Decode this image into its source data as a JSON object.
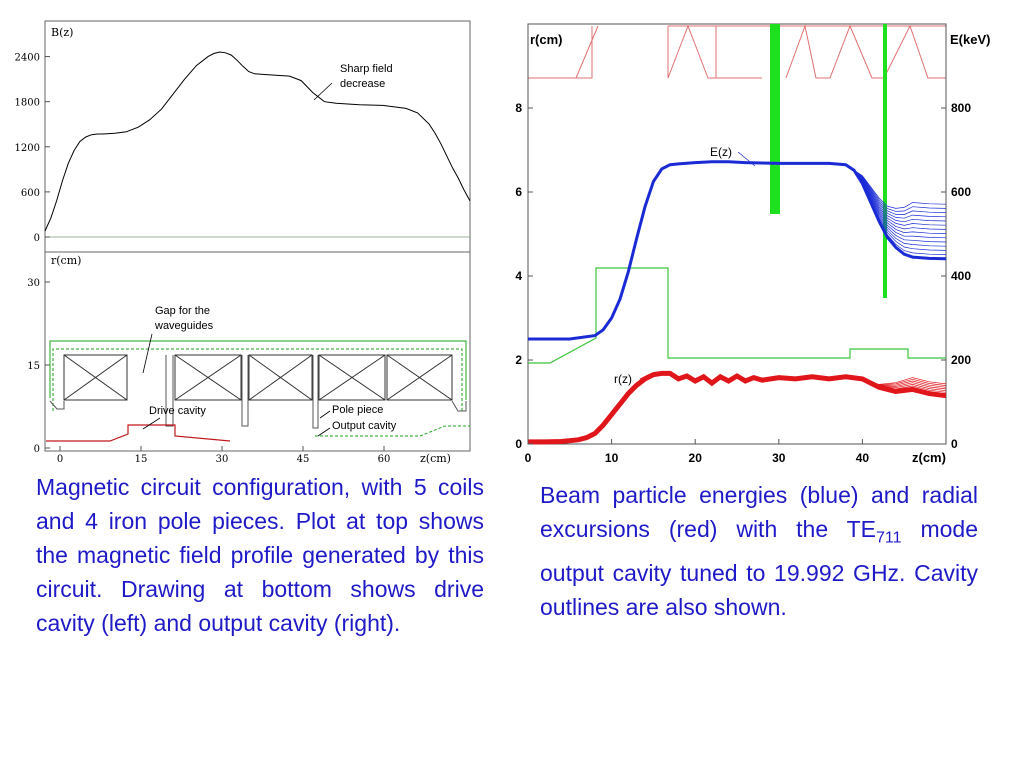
{
  "chart_data": [
    {
      "type": "line",
      "panel": "magnetic-field-profile",
      "ylabel": "B(z)",
      "xlabel": "z(cm)",
      "xticks": [
        0,
        15,
        30,
        45,
        60
      ],
      "yticks": [
        0,
        600,
        1200,
        1800,
        2400
      ],
      "xlim": [
        0,
        73
      ],
      "ylim": [
        0,
        2700
      ],
      "series": [
        {
          "color": "#000000",
          "x": [
            0,
            1,
            2,
            3,
            4,
            5,
            6,
            7,
            8,
            9,
            10,
            12,
            14,
            16,
            18,
            20,
            22,
            24,
            26,
            28,
            29,
            30,
            31,
            32,
            33,
            34,
            35,
            36,
            38,
            40,
            42,
            44,
            46,
            48,
            50,
            54,
            58,
            62,
            64,
            66,
            67,
            68,
            69,
            70,
            71,
            72,
            73
          ],
          "y": [
            80,
            250,
            480,
            750,
            980,
            1150,
            1270,
            1330,
            1360,
            1370,
            1370,
            1380,
            1400,
            1460,
            1560,
            1700,
            1900,
            2100,
            2280,
            2400,
            2440,
            2460,
            2450,
            2420,
            2350,
            2270,
            2200,
            2170,
            2160,
            2150,
            2140,
            2080,
            1920,
            1800,
            1780,
            1760,
            1750,
            1710,
            1650,
            1500,
            1380,
            1240,
            1080,
            920,
            780,
            620,
            480
          ]
        }
      ],
      "annotations": [
        "Sharp field decrease"
      ]
    },
    {
      "type": "line",
      "panel": "beam-energy-and-radius",
      "xlabel": "z(cm)",
      "ylabel_left": "r(cm)",
      "ylabel_right": "E(keV)",
      "xticks": [
        0,
        10,
        20,
        30,
        40
      ],
      "yticks_left": [
        0,
        2,
        4,
        6,
        8
      ],
      "yticks_right": [
        0,
        200,
        400,
        600,
        800
      ],
      "xlim": [
        0,
        50
      ],
      "ylim_left": [
        0,
        10
      ],
      "ylim_right": [
        0,
        1000
      ],
      "series": [
        {
          "name": "E(z)",
          "color": "#1a2bd6",
          "axis": "right",
          "x": [
            0,
            5,
            8,
            9,
            10,
            11,
            12,
            13,
            14,
            15,
            16,
            17,
            18,
            20,
            22,
            24,
            26,
            28,
            30,
            32,
            34,
            36,
            38,
            39,
            40,
            41,
            42,
            43,
            44,
            45,
            46,
            48,
            50
          ],
          "y": [
            250,
            250,
            258,
            272,
            300,
            345,
            410,
            490,
            565,
            625,
            655,
            665,
            667,
            670,
            672,
            672,
            670,
            669,
            668,
            668,
            668,
            668,
            665,
            652,
            620,
            575,
            530,
            492,
            468,
            452,
            445,
            442,
            441
          ]
        },
        {
          "name": "r(z)",
          "color": "#e0161b",
          "axis": "left",
          "x": [
            0,
            2,
            4,
            6,
            7,
            8,
            9,
            10,
            11,
            12,
            13,
            14,
            15,
            16,
            17,
            18,
            19,
            20,
            21,
            22,
            23,
            24,
            25,
            26,
            27,
            28,
            30,
            32,
            34,
            36,
            38,
            40,
            42,
            44,
            46,
            48,
            50
          ],
          "y": [
            0.05,
            0.05,
            0.06,
            0.1,
            0.15,
            0.25,
            0.45,
            0.7,
            0.95,
            1.2,
            1.4,
            1.55,
            1.65,
            1.68,
            1.68,
            1.55,
            1.62,
            1.5,
            1.6,
            1.45,
            1.6,
            1.5,
            1.62,
            1.5,
            1.58,
            1.52,
            1.58,
            1.55,
            1.6,
            1.55,
            1.6,
            1.55,
            1.35,
            1.25,
            1.3,
            1.2,
            1.15
          ]
        }
      ],
      "annotations": [
        "E(z)",
        "r(z)"
      ]
    }
  ],
  "left_figure": {
    "y_axis_label": "B(z)",
    "y_ticks": [
      "2400",
      "1800",
      "1200",
      "600",
      "0"
    ],
    "r_label": "r(cm)",
    "r_ticks": [
      "30",
      "15",
      "0"
    ],
    "x_label": "z(cm)",
    "x_ticks": [
      "0",
      "15",
      "30",
      "45",
      "60"
    ],
    "annotation_sharp_1": "Sharp field",
    "annotation_sharp_2": "decrease",
    "annotation_gap_1": "Gap for the",
    "annotation_gap_2": "waveguides",
    "annotation_drive": "Drive cavity",
    "annotation_pole": "Pole piece",
    "annotation_output": "Output cavity",
    "colors": {
      "curve": "#000000",
      "outline_green": "#1aa51a",
      "cavity_red": "#c0181b",
      "baseline": "#9bb39b"
    }
  },
  "right_figure": {
    "y_left_label": "r(cm)",
    "y_right_label": "E(keV)",
    "x_label": "z(cm)",
    "x_ticks": [
      "0",
      "10",
      "20",
      "30",
      "40"
    ],
    "y_left_ticks": [
      "0",
      "2",
      "4",
      "6",
      "8"
    ],
    "y_right_ticks": [
      "0",
      "200",
      "400",
      "600",
      "800"
    ],
    "label_E": "E(z)",
    "label_r": "r(z)",
    "colors": {
      "energy": "#1a2bd6",
      "radius": "#e0161b",
      "cavity": "#3cc43c",
      "bars": "#1ee01e",
      "pole_outline": "#e07070"
    }
  },
  "captions": {
    "left": "Magnetic circuit configuration, with 5 coils and 4 iron pole pieces.  Plot at top shows the magnetic field profile generated by this circuit. Drawing at bottom shows drive cavity (left) and output cavity (right).",
    "right_part1": "Beam particle energies (blue) and radial excursions (red) with the TE",
    "right_sub": "711",
    "right_part2": " mode output cavity tuned to 19.992 GHz.  Cavity outlines are also shown."
  }
}
